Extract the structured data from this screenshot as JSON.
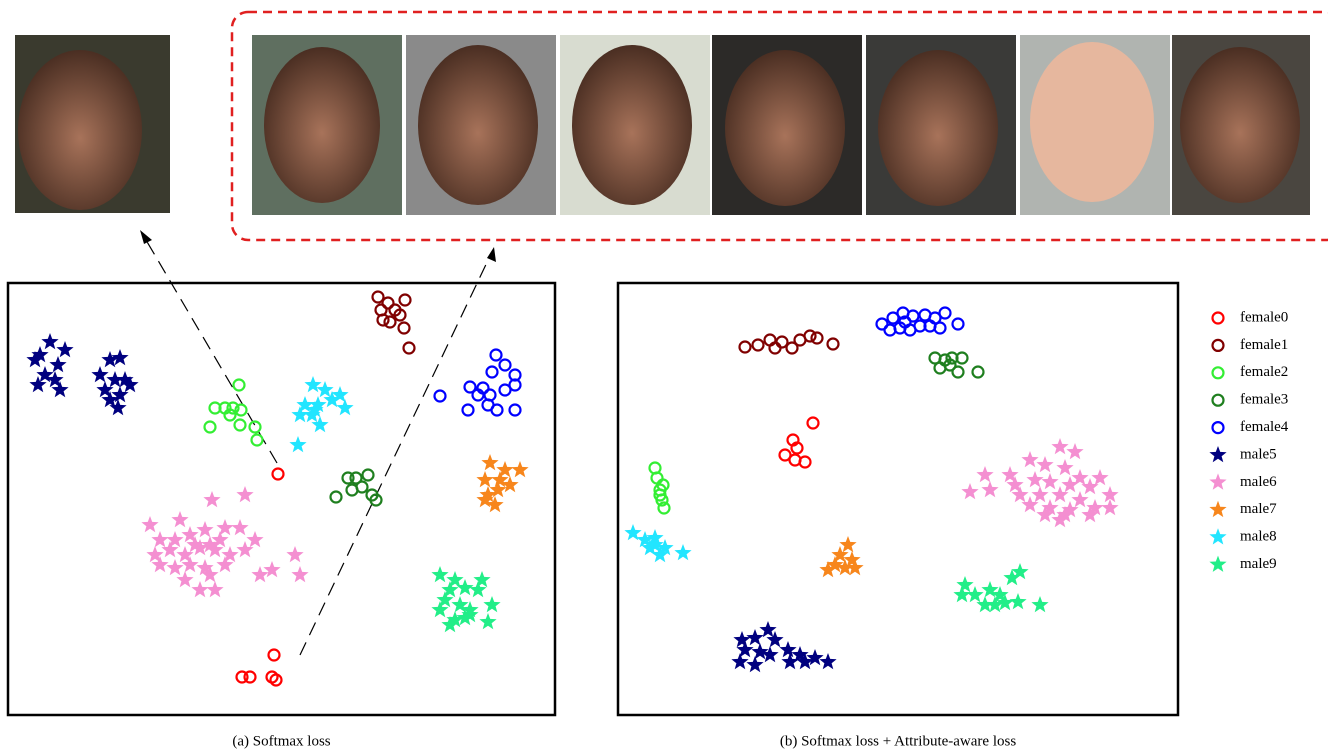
{
  "chart_data": [
    {
      "type": "scatter",
      "caption": "(a) Softmax loss",
      "xlim": [
        0,
        547
      ],
      "ylim": [
        0,
        432
      ],
      "legend": false,
      "series": [
        {
          "color": "#ff0000",
          "marker": "circle",
          "x": [
            270,
            234,
            242,
            264,
            268,
            266
          ],
          "y": [
            241,
            38,
            38,
            38,
            35,
            60
          ]
        },
        {
          "color": "#800000",
          "marker": "circle",
          "x": [
            370,
            380,
            397,
            373,
            387,
            375,
            382,
            396,
            401,
            392
          ],
          "y": [
            418,
            412,
            415,
            405,
            405,
            395,
            393,
            387,
            367,
            400
          ]
        },
        {
          "color": "#33ee33",
          "marker": "circle",
          "x": [
            231,
            207,
            217,
            225,
            233,
            202,
            232,
            247,
            249,
            222
          ],
          "y": [
            330,
            307,
            307,
            307,
            305,
            288,
            290,
            288,
            275,
            300
          ]
        },
        {
          "color": "#1f7f1f",
          "marker": "circle",
          "x": [
            328,
            340,
            348,
            360,
            354,
            364,
            368,
            344
          ],
          "y": [
            218,
            237,
            237,
            240,
            228,
            220,
            215,
            225
          ]
        },
        {
          "color": "#0000ff",
          "marker": "circle",
          "x": [
            432,
            488,
            497,
            507,
            484,
            462,
            475,
            482,
            497,
            507,
            460,
            480,
            489,
            507,
            470
          ],
          "y": [
            319,
            360,
            350,
            340,
            343,
            328,
            327,
            320,
            325,
            330,
            305,
            310,
            305,
            305,
            320
          ]
        },
        {
          "color": "#00007f",
          "marker": "star",
          "x": [
            42,
            32,
            57,
            27,
            50,
            37,
            47,
            30,
            52,
            102,
            112,
            92,
            107,
            117,
            97,
            112,
            102,
            110,
            122
          ],
          "y": [
            373,
            360,
            365,
            355,
            350,
            340,
            335,
            330,
            325,
            355,
            357,
            340,
            335,
            335,
            325,
            320,
            315,
            307,
            330
          ]
        },
        {
          "color": "#f48fd1",
          "marker": "star",
          "x": [
            142,
            172,
            204,
            237,
            152,
            167,
            182,
            197,
            217,
            232,
            247,
            147,
            162,
            177,
            192,
            207,
            222,
            237,
            152,
            167,
            182,
            197,
            217,
            177,
            202,
            192,
            207,
            252,
            264,
            287,
            292,
            202,
            187,
            212
          ],
          "y": [
            190,
            195,
            215,
            220,
            175,
            175,
            180,
            185,
            187,
            187,
            175,
            160,
            165,
            160,
            167,
            165,
            160,
            165,
            150,
            147,
            150,
            147,
            150,
            135,
            140,
            125,
            125,
            140,
            145,
            160,
            140,
            170,
            170,
            175
          ]
        },
        {
          "color": "#f7861c",
          "marker": "star",
          "x": [
            482,
            497,
            512,
            477,
            492,
            480,
            490,
            502,
            487,
            477
          ],
          "y": [
            252,
            245,
            245,
            235,
            235,
            220,
            225,
            230,
            210,
            215
          ]
        },
        {
          "color": "#22e5ff",
          "marker": "star",
          "x": [
            305,
            317,
            332,
            297,
            310,
            324,
            337,
            292,
            304,
            312,
            290,
            307
          ],
          "y": [
            330,
            325,
            320,
            310,
            310,
            315,
            307,
            300,
            300,
            290,
            270,
            305
          ]
        },
        {
          "color": "#22ee88",
          "marker": "star",
          "x": [
            432,
            447,
            474,
            442,
            457,
            470,
            437,
            452,
            462,
            484,
            432,
            447,
            462,
            480,
            442,
            457
          ],
          "y": [
            140,
            135,
            135,
            125,
            127,
            125,
            115,
            110,
            105,
            110,
            105,
            95,
            100,
            93,
            90,
            97
          ]
        }
      ]
    },
    {
      "type": "scatter",
      "caption": "(b) Softmax loss + Attribute-aware loss",
      "xlim": [
        0,
        560
      ],
      "ylim": [
        0,
        432
      ],
      "legend": true,
      "series": [
        {
          "name": "female0",
          "color": "#ff0000",
          "marker": "circle",
          "x": [
            195,
            175,
            179,
            167,
            177,
            187
          ],
          "y": [
            292,
            275,
            267,
            260,
            255,
            253
          ]
        },
        {
          "name": "female1",
          "color": "#800000",
          "marker": "circle",
          "x": [
            127,
            140,
            152,
            164,
            174,
            182,
            192,
            199,
            215,
            157
          ],
          "y": [
            368,
            370,
            375,
            373,
            367,
            375,
            379,
            377,
            371,
            367
          ]
        },
        {
          "name": "female2",
          "color": "#33ee33",
          "marker": "circle",
          "x": [
            37,
            39,
            42,
            44,
            46,
            42,
            45
          ],
          "y": [
            247,
            237,
            225,
            215,
            207,
            220,
            230
          ]
        },
        {
          "name": "female3",
          "color": "#1f7f1f",
          "marker": "circle",
          "x": [
            317,
            327,
            334,
            344,
            322,
            332,
            340,
            360
          ],
          "y": [
            357,
            355,
            357,
            357,
            347,
            350,
            343,
            343
          ]
        },
        {
          "name": "female4",
          "color": "#0000ff",
          "marker": "circle",
          "x": [
            264,
            275,
            285,
            295,
            307,
            317,
            327,
            340,
            272,
            282,
            292,
            302,
            312,
            322,
            287
          ],
          "y": [
            391,
            397,
            402,
            399,
            400,
            397,
            402,
            391,
            385,
            387,
            385,
            389,
            389,
            387,
            393
          ]
        },
        {
          "name": "male5",
          "color": "#00007f",
          "marker": "star",
          "x": [
            124,
            137,
            150,
            157,
            127,
            142,
            170,
            182,
            197,
            210,
            122,
            137,
            172,
            187,
            152
          ],
          "y": [
            75,
            77,
            85,
            75,
            65,
            63,
            65,
            60,
            57,
            53,
            53,
            50,
            53,
            53,
            60
          ]
        },
        {
          "name": "male6",
          "color": "#f48fd1",
          "marker": "star",
          "x": [
            442,
            457,
            367,
            392,
            412,
            427,
            447,
            462,
            482,
            352,
            372,
            397,
            417,
            432,
            452,
            472,
            492,
            402,
            422,
            442,
            462,
            412,
            432,
            452,
            477,
            492,
            427,
            447,
            472,
            442
          ],
          "y": [
            268,
            263,
            240,
            240,
            255,
            250,
            247,
            237,
            237,
            223,
            225,
            230,
            235,
            233,
            230,
            228,
            220,
            220,
            220,
            220,
            215,
            210,
            207,
            205,
            207,
            207,
            200,
            200,
            200,
            195
          ]
        },
        {
          "name": "male7",
          "color": "#f7861c",
          "marker": "star",
          "x": [
            230,
            222,
            234,
            217,
            227,
            237,
            210
          ],
          "y": [
            170,
            160,
            155,
            150,
            147,
            147,
            145
          ]
        },
        {
          "name": "male8",
          "color": "#22e5ff",
          "marker": "star",
          "x": [
            15,
            27,
            37,
            32,
            47,
            42,
            65,
            37
          ],
          "y": [
            182,
            175,
            177,
            167,
            167,
            160,
            162,
            170
          ]
        },
        {
          "name": "male9",
          "color": "#22ee88",
          "marker": "star",
          "x": [
            347,
            344,
            357,
            372,
            382,
            394,
            402,
            377,
            387,
            400,
            422,
            367
          ],
          "y": [
            130,
            120,
            120,
            125,
            120,
            137,
            143,
            110,
            112,
            113,
            110,
            110
          ]
        }
      ]
    }
  ]
}
